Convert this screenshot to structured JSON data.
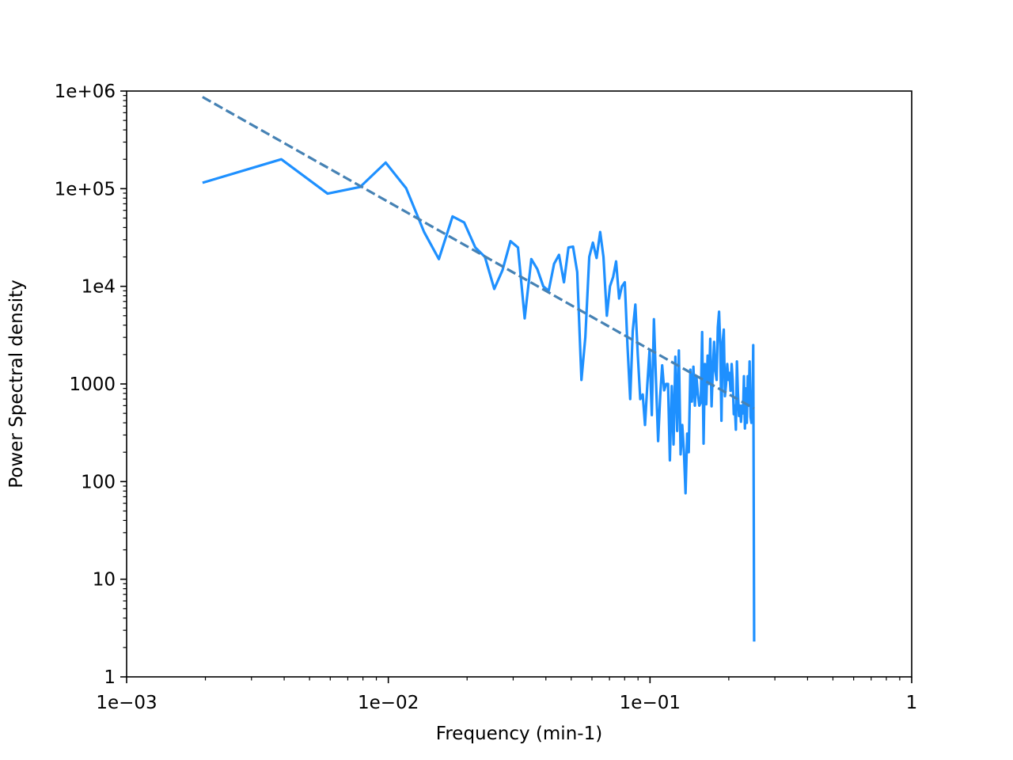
{
  "chart_data": {
    "type": "line",
    "title": "",
    "xlabel": "Frequency (min-1)",
    "ylabel": "Power Spectral density",
    "x_scale": "log",
    "y_scale": "log",
    "xlim": [
      0.001,
      1
    ],
    "ylim": [
      1,
      1000000
    ],
    "x_ticks": [
      {
        "value": 0.001,
        "label": "1e−03"
      },
      {
        "value": 0.01,
        "label": "1e−02"
      },
      {
        "value": 0.1,
        "label": "1e−01"
      },
      {
        "value": 1,
        "label": "1"
      }
    ],
    "y_ticks": [
      {
        "value": 1,
        "label": "1"
      },
      {
        "value": 10,
        "label": "10"
      },
      {
        "value": 100,
        "label": "100"
      },
      {
        "value": 1000,
        "label": "1000"
      },
      {
        "value": 10000,
        "label": "1e4"
      },
      {
        "value": 100000,
        "label": "1e+05"
      },
      {
        "value": 1000000,
        "label": "1e+06"
      }
    ],
    "grid": false,
    "colors": {
      "psd": "#1e90ff",
      "fit": "#4682b4"
    },
    "series": [
      {
        "style": "solid",
        "x": [
          0.00195,
          0.0039,
          0.00586,
          0.0078,
          0.00977,
          0.0117,
          0.0137,
          0.0156,
          0.0176,
          0.0195,
          0.0215,
          0.0234,
          0.0254,
          0.0273,
          0.0293,
          0.0313,
          0.0332,
          0.0352,
          0.0371,
          0.0391,
          0.041,
          0.043,
          0.0449,
          0.0469,
          0.0488,
          0.0508,
          0.0527,
          0.0547,
          0.0566,
          0.0586,
          0.0605,
          0.0625,
          0.0645,
          0.0664,
          0.0684,
          0.0703,
          0.0723,
          0.0742,
          0.0762,
          0.0781,
          0.0801,
          0.082,
          0.084,
          0.0859,
          0.0879,
          0.0898,
          0.0918,
          0.0938,
          0.0957,
          0.0977,
          0.0996,
          0.1016,
          0.1035,
          0.1055,
          0.1074,
          0.1094,
          0.1113,
          0.1133,
          0.1152,
          0.1172,
          0.1191,
          0.1211,
          0.123,
          0.125,
          0.127,
          0.1289,
          0.1309,
          0.1328,
          0.1348,
          0.1367,
          0.1387,
          0.1406,
          0.1426,
          0.1445,
          0.1465,
          0.1484,
          0.1504,
          0.1523,
          0.1543,
          0.1563,
          0.1582,
          0.1602,
          0.1621,
          0.1641,
          0.166,
          0.168,
          0.1699,
          0.1719,
          0.1738,
          0.1758,
          0.1777,
          0.1797,
          0.1816,
          0.1836,
          0.1855,
          0.1875,
          0.1895,
          0.1914,
          0.1934,
          0.1953,
          0.1973,
          0.1992,
          0.2012,
          0.2031,
          0.2051,
          0.207,
          0.209,
          0.2109,
          0.2129,
          0.2148,
          0.2168,
          0.2188,
          0.2207,
          0.2227,
          0.2246,
          0.2266,
          0.2285,
          0.2305,
          0.2324,
          0.2344,
          0.2363,
          0.2383,
          0.2402,
          0.2422,
          0.2441,
          0.2461,
          0.248,
          0.25
        ],
        "y": [
          115000,
          200000,
          89000,
          104000,
          185000,
          101000,
          36000,
          19000,
          52000,
          45000,
          25000,
          20000,
          9400,
          14600,
          29000,
          25000,
          4700,
          19000,
          15000,
          10000,
          9000,
          17000,
          21000,
          11000,
          25000,
          25500,
          14000,
          1100,
          3000,
          20000,
          28000,
          19500,
          36000,
          20000,
          5000,
          10000,
          12500,
          18000,
          7500,
          10000,
          11000,
          2500,
          700,
          3500,
          6500,
          2000,
          700,
          780,
          380,
          1000,
          2200,
          480,
          4600,
          1000,
          260,
          760,
          1550,
          860,
          1000,
          1000,
          165,
          950,
          240,
          1900,
          330,
          2200,
          190,
          380,
          200,
          76,
          310,
          200,
          1400,
          660,
          1500,
          600,
          1200,
          800,
          600,
          640,
          3400,
          245,
          1600,
          620,
          1950,
          1000,
          2900,
          590,
          1400,
          2700,
          1350,
          1100,
          3800,
          5500,
          2500,
          420,
          2700,
          3600,
          750,
          1000,
          1600,
          1100,
          1300,
          850,
          1600,
          1100,
          490,
          600,
          340,
          1700,
          800,
          470,
          600,
          410,
          600,
          500,
          1200,
          350,
          900,
          400,
          1200,
          600,
          1700,
          460,
          400,
          500,
          2500,
          2.3
        ],
        "name": ""
      },
      {
        "style": "dashed",
        "x": [
          0.00195,
          0.25
        ],
        "y": [
          870000,
          560
        ],
        "name": ""
      }
    ]
  }
}
